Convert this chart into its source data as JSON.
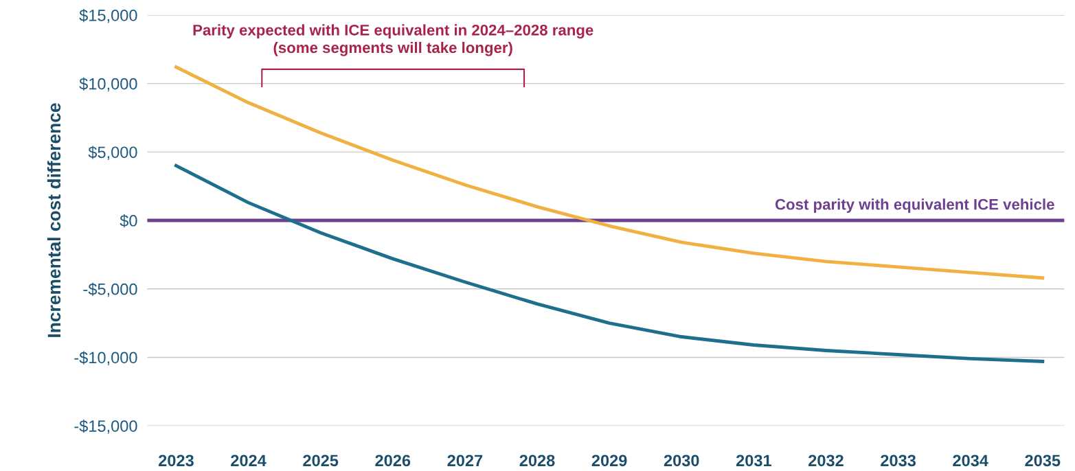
{
  "chart_data": {
    "type": "line",
    "ylabel": "Incremental cost difference",
    "x": [
      2023,
      2024,
      2025,
      2026,
      2027,
      2028,
      2029,
      2030,
      2031,
      2032,
      2033,
      2034,
      2035
    ],
    "series": [
      {
        "color": "#f0b042",
        "values": [
          11200,
          8600,
          6400,
          4400,
          2600,
          1000,
          -400,
          -1600,
          -2400,
          -3000,
          -3400,
          -3800,
          -4200
        ]
      },
      {
        "color": "#1e6f8e",
        "values": [
          4000,
          1300,
          -900,
          -2800,
          -4500,
          -6100,
          -7500,
          -8500,
          -9100,
          -9500,
          -9800,
          -10100,
          -10300
        ]
      }
    ],
    "xlim": [
      2022.6,
      2035.3
    ],
    "xticks": [
      2023,
      2024,
      2025,
      2026,
      2027,
      2028,
      2029,
      2030,
      2031,
      2032,
      2033,
      2034,
      2035
    ],
    "ylim": [
      -15000,
      15000
    ],
    "yticks": [
      {
        "value": -15000,
        "label": "-$15,000"
      },
      {
        "value": -10000,
        "label": "-$10,000"
      },
      {
        "value": -5000,
        "label": "-$5,000"
      },
      {
        "value": 0,
        "label": "$0"
      },
      {
        "value": 5000,
        "label": "$5,000"
      },
      {
        "value": 10000,
        "label": "$10,000"
      },
      {
        "value": 15000,
        "label": "$15,000"
      }
    ],
    "grid": "y",
    "marker": "none",
    "line_style": "solid",
    "ref_lines": [
      {
        "axis": "y",
        "value": 0,
        "label": "Cost parity with equivalent ICE vehicle",
        "color": "#6c3f8f"
      }
    ],
    "annotations": [
      "Parity expected with ICE equivalent in 2024–2028 range\n(some segments will take longer)"
    ]
  }
}
